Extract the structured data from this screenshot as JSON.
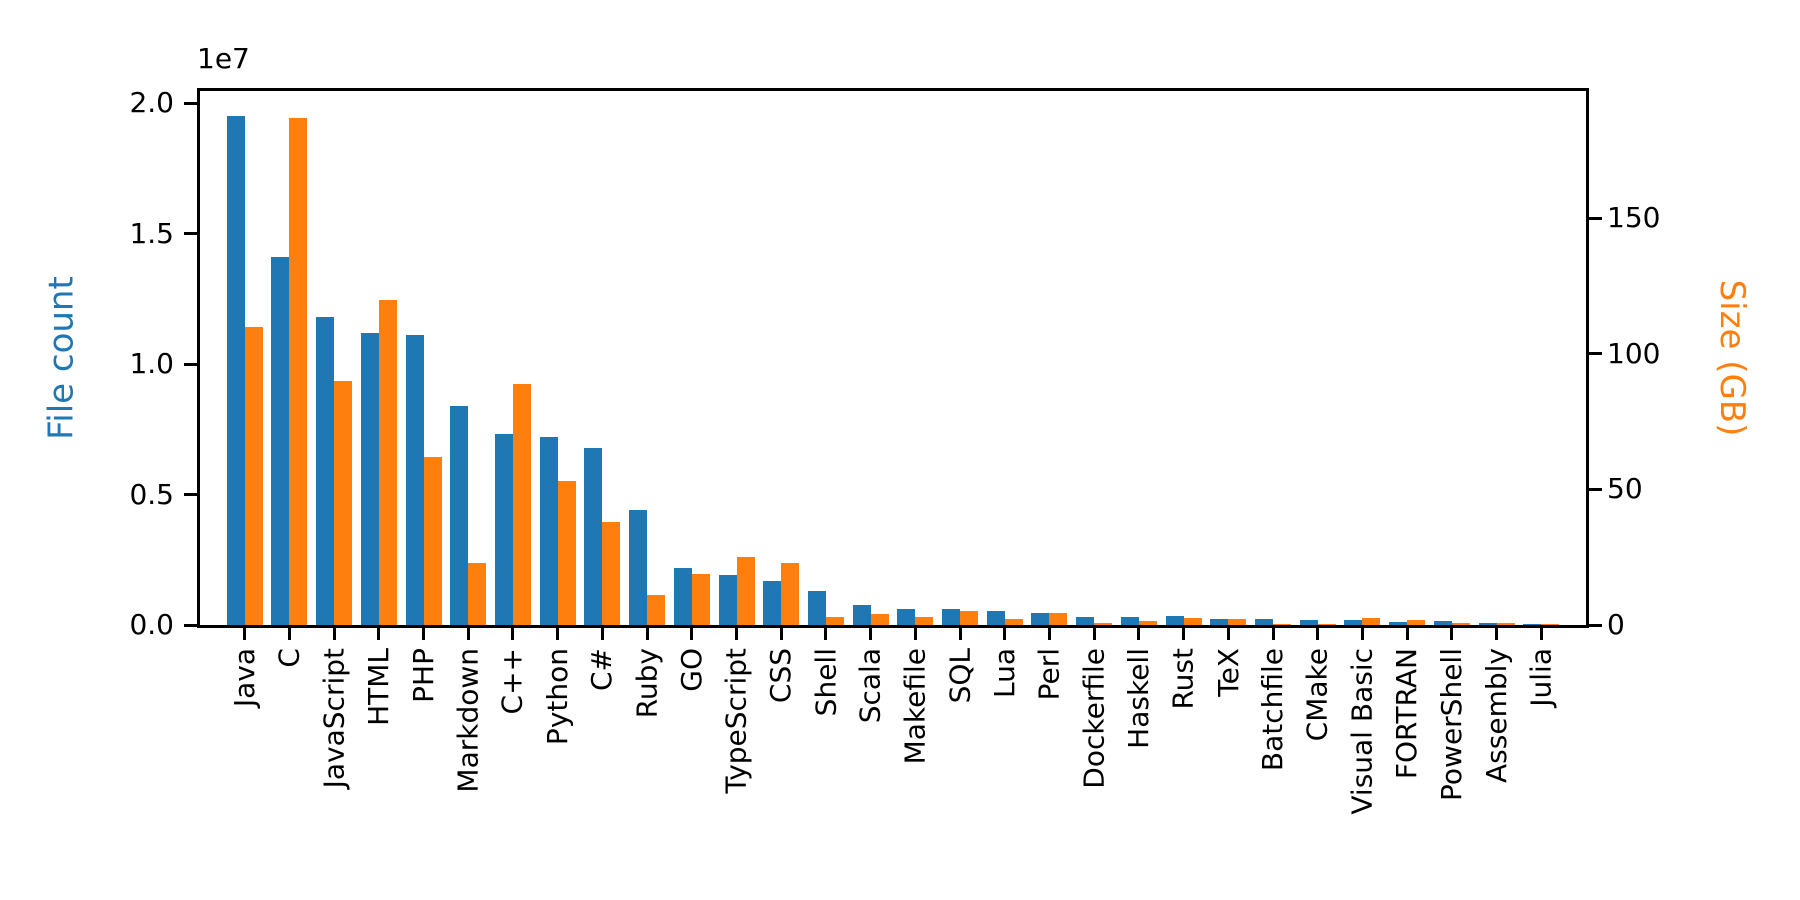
{
  "chart_data": {
    "type": "bar",
    "title": "",
    "grid": false,
    "legend": false,
    "categories": [
      "Java",
      "C",
      "JavaScript",
      "HTML",
      "PHP",
      "Markdown",
      "C++",
      "Python",
      "C#",
      "Ruby",
      "GO",
      "TypeScript",
      "CSS",
      "Shell",
      "Scala",
      "Makefile",
      "SQL",
      "Lua",
      "Perl",
      "Dockerfile",
      "Haskell",
      "Rust",
      "TeX",
      "Batchfile",
      "CMake",
      "Visual Basic",
      "FORTRAN",
      "PowerShell",
      "Assembly",
      "Julia"
    ],
    "series": [
      {
        "name": "File count",
        "axis": "left",
        "color": "#1f77b4",
        "values": [
          19500000,
          14100000,
          11800000,
          11200000,
          11100000,
          8400000,
          7300000,
          7200000,
          6800000,
          4400000,
          2200000,
          1900000,
          1700000,
          1300000,
          760000,
          610000,
          610000,
          530000,
          460000,
          310000,
          310000,
          340000,
          230000,
          230000,
          180000,
          200000,
          130000,
          150000,
          70000,
          40000
        ]
      },
      {
        "name": "Size (GB)",
        "axis": "right",
        "color": "#ff7f0e",
        "values": [
          110,
          187,
          90,
          120,
          62,
          23,
          89,
          53,
          38,
          11,
          19,
          25,
          23,
          3,
          4,
          3,
          5,
          2.2,
          4.4,
          0.7,
          1.5,
          2.6,
          2.2,
          0.4,
          0.5,
          2.5,
          2.0,
          0.8,
          0.7,
          0.3
        ]
      }
    ],
    "left_axis": {
      "label": "File count",
      "color": "#1f77b4",
      "offset_text": "1e7",
      "ticks": [
        "0.0",
        "0.5",
        "1.0",
        "1.5",
        "2.0"
      ],
      "tick_values": [
        0,
        5000000,
        10000000,
        15000000,
        20000000
      ],
      "ylim": [
        0,
        20460000
      ]
    },
    "right_axis": {
      "label": "Size (GB)",
      "color": "#ff7f0e",
      "ticks": [
        "0",
        "50",
        "100",
        "150"
      ],
      "tick_values": [
        0,
        50,
        100,
        150
      ],
      "ylim": [
        0,
        197
      ]
    },
    "xlabel": "",
    "x_tick_rotation": 90
  }
}
